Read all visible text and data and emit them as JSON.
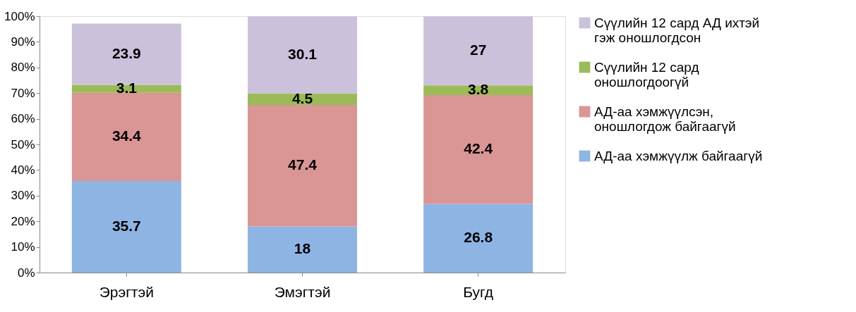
{
  "chart_data": {
    "type": "bar",
    "stacked": true,
    "categories": [
      "Эрэгтэй",
      "Эмэгтэй",
      "Бугд"
    ],
    "series": [
      {
        "name": "АД-аа хэмжүүлж байгаагүй",
        "color": "#8eb4e3",
        "values": [
          35.7,
          18,
          26.8
        ]
      },
      {
        "name": "АД-аа хэмжүүлсэн, оношлогдож байгаагүй",
        "color": "#d99694",
        "values": [
          34.4,
          47.4,
          42.4
        ]
      },
      {
        "name": "Сүүлийн 12 сард оношлогдоогүй",
        "color": "#9bbb59",
        "values": [
          3.1,
          4.5,
          3.8
        ]
      },
      {
        "name": "Сүүлийн 12 сард АД ихтэй гэж оношлогдсон",
        "color": "#ccc1da",
        "values": [
          23.9,
          30.1,
          27
        ]
      }
    ],
    "ylim": [
      0,
      100
    ],
    "yticks": [
      {
        "value": 0,
        "label": "0%"
      },
      {
        "value": 10,
        "label": "10%"
      },
      {
        "value": 20,
        "label": "20%"
      },
      {
        "value": 30,
        "label": "30%"
      },
      {
        "value": 40,
        "label": "40%"
      },
      {
        "value": 50,
        "label": "50%"
      },
      {
        "value": 60,
        "label": "60%"
      },
      {
        "value": 70,
        "label": "70%"
      },
      {
        "value": 80,
        "label": "80%"
      },
      {
        "value": 90,
        "label": "90%"
      },
      {
        "value": 100,
        "label": "100%"
      }
    ],
    "data_labels": true,
    "grid": false,
    "legend": "right"
  }
}
